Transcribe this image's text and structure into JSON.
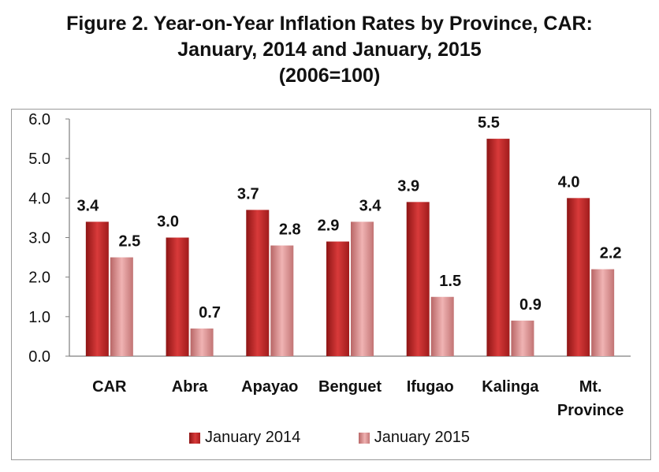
{
  "title": {
    "line1": "Figure 2. Year-on-Year Inflation Rates by Province, CAR:",
    "line2": "January, 2014 and January, 2015",
    "line3": "(2006=100)"
  },
  "chart_data": {
    "type": "bar",
    "categories": [
      "CAR",
      "Abra",
      "Apayao",
      "Benguet",
      "Ifugao",
      "Kalinga",
      "Mt. Province"
    ],
    "category_lines": [
      [
        "CAR"
      ],
      [
        "Abra"
      ],
      [
        "Apayao"
      ],
      [
        "Benguet"
      ],
      [
        "Ifugao"
      ],
      [
        "Kalinga"
      ],
      [
        "Mt.",
        "Province"
      ]
    ],
    "series": [
      {
        "name": "January 2014",
        "values": [
          3.4,
          3.0,
          3.7,
          2.9,
          3.9,
          5.5,
          4.0
        ],
        "labels": [
          "3.4",
          "3.0",
          "3.7",
          "2.9",
          "3.9",
          "5.5",
          "4.0"
        ],
        "color": "#c0282a"
      },
      {
        "name": "January 2015",
        "values": [
          2.5,
          0.7,
          2.8,
          3.4,
          1.5,
          0.9,
          2.2
        ],
        "labels": [
          "2.5",
          "0.7",
          "2.8",
          "3.4",
          "1.5",
          "0.9",
          "2.2"
        ],
        "color": "#e39a9a"
      }
    ],
    "yticks": [
      "0.0",
      "1.0",
      "2.0",
      "3.0",
      "4.0",
      "5.0",
      "6.0"
    ],
    "ylim": [
      0,
      6
    ],
    "grid": false,
    "legend": "bottom"
  }
}
